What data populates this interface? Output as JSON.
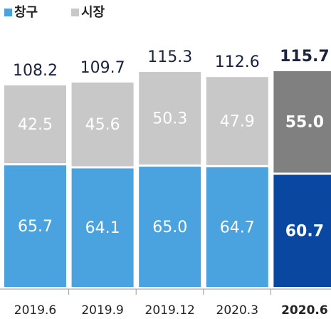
{
  "chart_data": {
    "type": "stacked_bar",
    "categories": [
      "2019.6",
      "2019.9",
      "2019.12",
      "2020.3",
      "2020.6"
    ],
    "series": [
      {
        "name": "창구",
        "color": "#4aa3df",
        "colors": [
          "#4aa3df",
          "#4aa3df",
          "#4aa3df",
          "#4aa3df",
          "#0a47a0"
        ],
        "values": [
          65.7,
          64.1,
          65.0,
          64.7,
          60.7
        ],
        "value_labels": [
          "65.7",
          "64.1",
          "65.0",
          "64.7",
          "60.7"
        ]
      },
      {
        "name": "시장",
        "color": "#c8c8c8",
        "colors": [
          "#c8c8c8",
          "#c8c8c8",
          "#c8c8c8",
          "#c8c8c8",
          "#808080"
        ],
        "values": [
          42.5,
          45.6,
          50.3,
          47.9,
          55.0
        ],
        "value_labels": [
          "42.5",
          "45.6",
          "50.3",
          "47.9",
          "55.0"
        ]
      }
    ],
    "totals": [
      108.2,
      109.7,
      115.3,
      112.6,
      115.7
    ],
    "highlight_index": 4
  }
}
